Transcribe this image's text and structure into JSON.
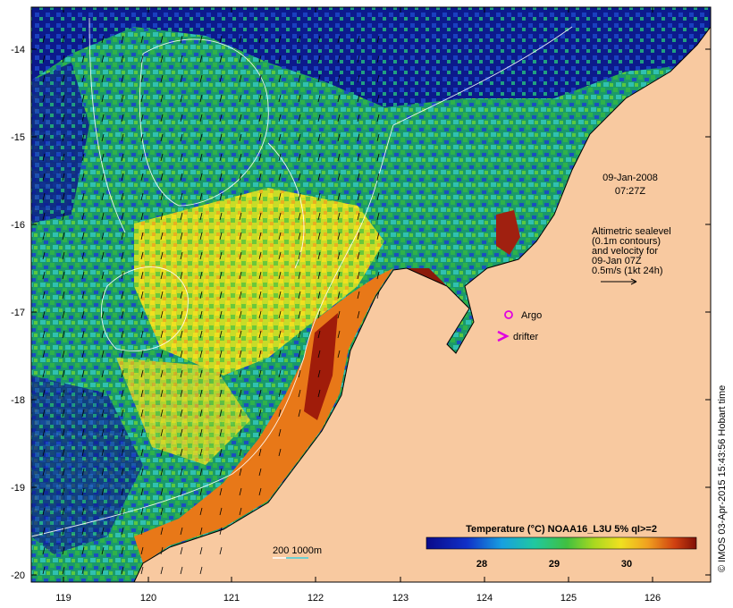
{
  "map": {
    "lon_ticks": [
      "119",
      "120",
      "121",
      "122",
      "123",
      "124",
      "125",
      "126"
    ],
    "lat_ticks": [
      "-14",
      "-15",
      "-16",
      "-17",
      "-18",
      "-19",
      "-20"
    ],
    "datetime_line1": "09-Jan-2008",
    "datetime_line2": "07:27Z",
    "altimetry_note": [
      "Altimetric sealevel",
      "(0.1m contours)",
      "and velocity for",
      "09-Jan 07Z",
      "0.5m/s (1kt 24h)"
    ],
    "legend_argo": "Argo",
    "legend_drifter": "drifter",
    "depth_label": "200  1000m",
    "colorbar_title": "Temperature (°C) NOAA16_L3U 5% qI>=2",
    "colorbar_ticks": [
      "28",
      "29",
      "30"
    ],
    "credit": "© IMOS 03-Apr-2015 15:43:56 Hobart time",
    "colors": {
      "land": "#f8c9a0",
      "cold": "#0a1a8c",
      "mid": "#2fb24a",
      "warm": "#e8d820",
      "hot": "#8b1a0a",
      "argo_marker": "#e000e0"
    }
  }
}
